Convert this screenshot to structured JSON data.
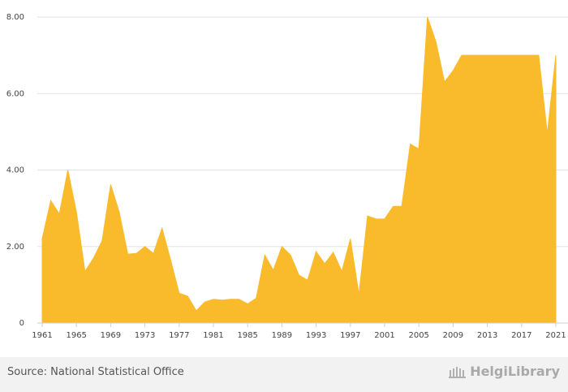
{
  "chart_data": {
    "type": "area",
    "title": "",
    "xlabel": "",
    "ylabel": "",
    "x": [
      1961,
      1962,
      1963,
      1964,
      1965,
      1966,
      1967,
      1968,
      1969,
      1970,
      1971,
      1972,
      1973,
      1974,
      1975,
      1976,
      1977,
      1978,
      1979,
      1980,
      1981,
      1982,
      1983,
      1984,
      1985,
      1986,
      1987,
      1988,
      1989,
      1990,
      1991,
      1992,
      1993,
      1994,
      1995,
      1996,
      1997,
      1998,
      1999,
      2000,
      2001,
      2002,
      2003,
      2004,
      2005,
      2006,
      2007,
      2008,
      2009,
      2010,
      2011,
      2012,
      2013,
      2014,
      2015,
      2016,
      2017,
      2018,
      2019,
      2020,
      2021
    ],
    "values": [
      2.2,
      3.2,
      2.85,
      4.0,
      2.9,
      1.35,
      1.7,
      2.15,
      3.62,
      2.9,
      1.8,
      1.82,
      2.0,
      1.82,
      2.48,
      1.65,
      0.78,
      0.7,
      0.32,
      0.55,
      0.62,
      0.6,
      0.62,
      0.62,
      0.5,
      0.65,
      1.78,
      1.38,
      2.0,
      1.78,
      1.25,
      1.12,
      1.87,
      1.55,
      1.85,
      1.35,
      2.2,
      0.75,
      2.8,
      2.72,
      2.72,
      3.05,
      3.05,
      4.68,
      4.55,
      8.0,
      7.35,
      6.3,
      6.6,
      7.0,
      7.0,
      7.0,
      7.0,
      7.0,
      7.0,
      7.0,
      7.0,
      7.0,
      7.0,
      4.95,
      7.0
    ],
    "ylim": [
      0,
      8
    ],
    "yticks": [
      "0",
      "2.00",
      "4.00",
      "6.00",
      "8.00"
    ],
    "xticks": [
      "1961",
      "1965",
      "1969",
      "1973",
      "1977",
      "1981",
      "1985",
      "1989",
      "1993",
      "1997",
      "2001",
      "2005",
      "2009",
      "2013",
      "2017",
      "2021"
    ],
    "grid": true,
    "fill_color": "#f9bb2c"
  },
  "footer": {
    "source": "Source: National Statistical Office",
    "brand": "HelgiLibrary"
  }
}
